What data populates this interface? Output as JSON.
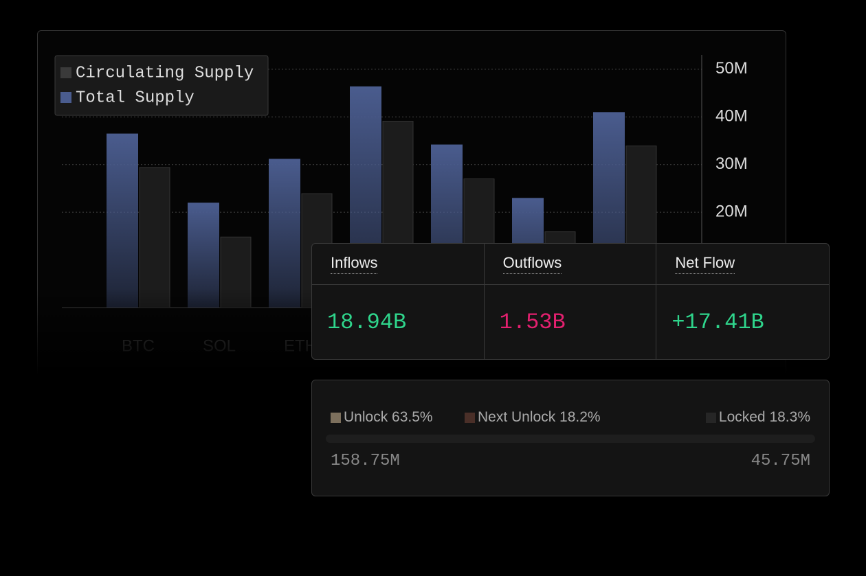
{
  "chart_data": {
    "type": "bar",
    "categories": [
      "BTC",
      "SOL",
      "ETH",
      null,
      null,
      null,
      null
    ],
    "series": [
      {
        "name": "Circulating Supply",
        "color": "#1c1c1c",
        "values": [
          29.4,
          14.8,
          23.9,
          39.1,
          27.0,
          15.9,
          33.9
        ]
      },
      {
        "name": "Total Supply",
        "color": "#4a5c8e",
        "values": [
          36.5,
          22.0,
          31.2,
          46.4,
          34.2,
          23.0,
          41.0
        ]
      }
    ],
    "ylim": [
      0,
      53
    ],
    "yticks": [
      {
        "value": 20,
        "label": "20M"
      },
      {
        "value": 30,
        "label": "30M"
      },
      {
        "value": 40,
        "label": "40M"
      },
      {
        "value": 50,
        "label": "50M"
      }
    ],
    "grid": true,
    "legend": "top-left"
  },
  "flows": {
    "headers": [
      "Inflows",
      "Outflows",
      "Net Flow"
    ],
    "values": [
      "18.94B",
      "1.53B",
      "+17.41B"
    ],
    "colors": [
      "#2fd58c",
      "#e3206f",
      "#2fd58c"
    ]
  },
  "supply": {
    "segments": [
      {
        "label": "Unlock 63.5%",
        "value": 63.5,
        "color": "#7d705d"
      },
      {
        "label": "Next Unlock 18.2%",
        "value": 18.2,
        "color": "#4a2f28"
      },
      {
        "label": "Locked 18.3%",
        "value": 18.3,
        "color": "#1e1e1e"
      }
    ],
    "left_value": "158.75M",
    "right_value": "45.75M"
  }
}
